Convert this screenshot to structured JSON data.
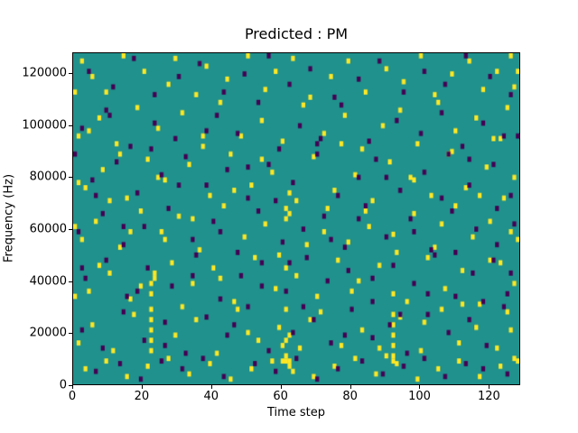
{
  "chart_data": {
    "type": "heatmap",
    "title": "Predicted : PM",
    "xlabel": "Time step",
    "ylabel": "Frequency (Hz)",
    "xlim": [
      0,
      129
    ],
    "ylim": [
      0,
      128000
    ],
    "x_ticks": [
      0,
      20,
      40,
      60,
      80,
      100,
      120
    ],
    "y_ticks": [
      0,
      20000,
      40000,
      60000,
      80000,
      100000,
      120000
    ],
    "grid": false,
    "legend": "none",
    "colors": {
      "background": "#20918c",
      "high": "#fde725",
      "low": "#440154",
      "axis": "#000000",
      "figure_bg": "#ffffff"
    },
    "y_unit": 1000,
    "cell": {
      "w": 1,
      "h": 2
    },
    "points_high": [
      [
        2,
        124
      ],
      [
        5,
        118
      ],
      [
        9,
        112
      ],
      [
        14,
        126
      ],
      [
        20,
        120
      ],
      [
        27,
        115
      ],
      [
        29,
        125
      ],
      [
        35,
        111
      ],
      [
        38,
        122
      ],
      [
        44,
        117
      ],
      [
        50,
        126
      ],
      [
        55,
        113
      ],
      [
        58,
        120
      ],
      [
        63,
        125
      ],
      [
        68,
        110
      ],
      [
        74,
        118
      ],
      [
        79,
        124
      ],
      [
        84,
        112
      ],
      [
        90,
        121
      ],
      [
        95,
        116
      ],
      [
        100,
        126
      ],
      [
        104,
        111
      ],
      [
        109,
        119
      ],
      [
        114,
        124
      ],
      [
        118,
        113
      ],
      [
        122,
        120
      ],
      [
        126,
        126
      ],
      [
        127,
        114
      ],
      [
        1,
        95
      ],
      [
        7,
        102
      ],
      [
        12,
        92
      ],
      [
        18,
        106
      ],
      [
        24,
        98
      ],
      [
        31,
        104
      ],
      [
        37,
        91
      ],
      [
        42,
        108
      ],
      [
        48,
        95
      ],
      [
        54,
        101
      ],
      [
        60,
        93
      ],
      [
        66,
        107
      ],
      [
        72,
        96
      ],
      [
        78,
        103
      ],
      [
        83,
        90
      ],
      [
        89,
        99
      ],
      [
        94,
        105
      ],
      [
        99,
        92
      ],
      [
        105,
        108
      ],
      [
        110,
        97
      ],
      [
        116,
        102
      ],
      [
        121,
        94
      ],
      [
        125,
        106
      ],
      [
        3,
        75
      ],
      [
        8,
        82
      ],
      [
        15,
        71
      ],
      [
        21,
        86
      ],
      [
        26,
        78
      ],
      [
        33,
        84
      ],
      [
        39,
        72
      ],
      [
        45,
        88
      ],
      [
        51,
        76
      ],
      [
        57,
        81
      ],
      [
        62,
        73
      ],
      [
        69,
        87
      ],
      [
        75,
        74
      ],
      [
        81,
        80
      ],
      [
        86,
        70
      ],
      [
        91,
        85
      ],
      [
        97,
        79
      ],
      [
        103,
        72
      ],
      [
        108,
        88
      ],
      [
        113,
        75
      ],
      [
        119,
        83
      ],
      [
        124,
        71
      ],
      [
        127,
        79
      ],
      [
        2,
        55
      ],
      [
        6,
        62
      ],
      [
        13,
        52
      ],
      [
        19,
        66
      ],
      [
        25,
        58
      ],
      [
        30,
        64
      ],
      [
        36,
        51
      ],
      [
        43,
        68
      ],
      [
        49,
        56
      ],
      [
        55,
        61
      ],
      [
        61,
        63
      ],
      [
        62,
        65
      ],
      [
        61,
        67
      ],
      [
        67,
        53
      ],
      [
        73,
        67
      ],
      [
        79,
        54
      ],
      [
        85,
        60
      ],
      [
        92,
        57
      ],
      [
        98,
        65
      ],
      [
        104,
        52
      ],
      [
        110,
        68
      ],
      [
        115,
        56
      ],
      [
        120,
        62
      ],
      [
        126,
        58
      ],
      [
        4,
        35
      ],
      [
        10,
        42
      ],
      [
        16,
        32
      ],
      [
        22,
        34
      ],
      [
        22,
        38
      ],
      [
        23,
        40
      ],
      [
        23,
        42
      ],
      [
        28,
        46
      ],
      [
        34,
        38
      ],
      [
        40,
        44
      ],
      [
        46,
        31
      ],
      [
        52,
        48
      ],
      [
        58,
        36
      ],
      [
        61,
        44
      ],
      [
        64,
        41
      ],
      [
        70,
        33
      ],
      [
        76,
        47
      ],
      [
        82,
        39
      ],
      [
        88,
        45
      ],
      [
        92,
        34
      ],
      [
        96,
        31
      ],
      [
        102,
        48
      ],
      [
        107,
        36
      ],
      [
        112,
        43
      ],
      [
        117,
        30
      ],
      [
        123,
        46
      ],
      [
        127,
        38
      ],
      [
        1,
        15
      ],
      [
        5,
        22
      ],
      [
        11,
        12
      ],
      [
        17,
        26
      ],
      [
        22,
        12
      ],
      [
        22,
        16
      ],
      [
        22,
        20
      ],
      [
        22,
        24
      ],
      [
        22,
        28
      ],
      [
        29,
        18
      ],
      [
        35,
        24
      ],
      [
        41,
        11
      ],
      [
        47,
        28
      ],
      [
        53,
        16
      ],
      [
        59,
        21
      ],
      [
        60,
        14
      ],
      [
        61,
        16
      ],
      [
        62,
        18
      ],
      [
        61,
        28
      ],
      [
        65,
        13
      ],
      [
        71,
        27
      ],
      [
        77,
        14
      ],
      [
        83,
        20
      ],
      [
        90,
        10
      ],
      [
        92,
        14
      ],
      [
        92,
        18
      ],
      [
        92,
        22
      ],
      [
        92,
        26
      ],
      [
        94,
        25
      ],
      [
        100,
        12
      ],
      [
        106,
        28
      ],
      [
        111,
        15
      ],
      [
        116,
        21
      ],
      [
        122,
        13
      ],
      [
        125,
        27
      ],
      [
        3,
        5
      ],
      [
        9,
        8
      ],
      [
        15,
        2
      ],
      [
        21,
        6
      ],
      [
        27,
        9
      ],
      [
        33,
        3
      ],
      [
        39,
        7
      ],
      [
        45,
        1
      ],
      [
        51,
        5
      ],
      [
        57,
        8
      ],
      [
        60,
        8
      ],
      [
        61,
        8
      ],
      [
        62,
        8
      ],
      [
        61,
        10
      ],
      [
        62,
        6
      ],
      [
        63,
        4
      ],
      [
        69,
        2
      ],
      [
        75,
        6
      ],
      [
        81,
        9
      ],
      [
        87,
        3
      ],
      [
        92,
        8
      ],
      [
        92,
        10
      ],
      [
        93,
        7
      ],
      [
        99,
        1
      ],
      [
        105,
        5
      ],
      [
        111,
        8
      ],
      [
        117,
        2
      ],
      [
        123,
        6
      ],
      [
        127,
        9
      ],
      [
        0,
        60
      ],
      [
        0,
        33
      ],
      [
        1,
        77
      ],
      [
        4,
        97
      ],
      [
        7,
        45
      ],
      [
        10,
        70
      ],
      [
        13,
        88
      ],
      [
        16,
        58
      ],
      [
        19,
        37
      ],
      [
        24,
        79
      ],
      [
        26,
        55
      ],
      [
        31,
        29
      ],
      [
        34,
        63
      ],
      [
        37,
        95
      ],
      [
        42,
        40
      ],
      [
        46,
        74
      ],
      [
        50,
        19
      ],
      [
        54,
        86
      ],
      [
        59,
        49
      ],
      [
        64,
        70
      ],
      [
        68,
        24
      ],
      [
        72,
        58
      ],
      [
        77,
        92
      ],
      [
        80,
        35
      ],
      [
        84,
        66
      ],
      [
        88,
        13
      ],
      [
        93,
        50
      ],
      [
        98,
        78
      ],
      [
        101,
        23
      ],
      [
        106,
        61
      ],
      [
        109,
        89
      ],
      [
        112,
        30
      ],
      [
        117,
        72
      ],
      [
        120,
        47
      ],
      [
        123,
        94
      ],
      [
        126,
        20
      ],
      [
        128,
        55
      ],
      [
        128,
        8
      ],
      [
        0,
        112
      ],
      [
        128,
        120
      ]
    ],
    "points_low": [
      [
        4,
        120
      ],
      [
        11,
        114
      ],
      [
        17,
        125
      ],
      [
        23,
        111
      ],
      [
        30,
        118
      ],
      [
        36,
        123
      ],
      [
        43,
        112
      ],
      [
        49,
        119
      ],
      [
        56,
        126
      ],
      [
        62,
        115
      ],
      [
        68,
        121
      ],
      [
        75,
        110
      ],
      [
        82,
        117
      ],
      [
        88,
        124
      ],
      [
        95,
        112
      ],
      [
        101,
        120
      ],
      [
        107,
        115
      ],
      [
        113,
        126
      ],
      [
        120,
        118
      ],
      [
        126,
        111
      ],
      [
        2,
        98
      ],
      [
        9,
        105
      ],
      [
        16,
        91
      ],
      [
        23,
        100
      ],
      [
        29,
        94
      ],
      [
        41,
        103
      ],
      [
        47,
        96
      ],
      [
        53,
        108
      ],
      [
        59,
        90
      ],
      [
        65,
        99
      ],
      [
        71,
        94
      ],
      [
        77,
        107
      ],
      [
        85,
        93
      ],
      [
        93,
        101
      ],
      [
        100,
        96
      ],
      [
        106,
        104
      ],
      [
        112,
        91
      ],
      [
        118,
        100
      ],
      [
        124,
        95
      ],
      [
        5,
        78
      ],
      [
        12,
        85
      ],
      [
        18,
        73
      ],
      [
        25,
        80
      ],
      [
        32,
        87
      ],
      [
        38,
        76
      ],
      [
        44,
        82
      ],
      [
        50,
        71
      ],
      [
        56,
        84
      ],
      [
        63,
        77
      ],
      [
        70,
        88
      ],
      [
        76,
        72
      ],
      [
        82,
        79
      ],
      [
        87,
        86
      ],
      [
        94,
        74
      ],
      [
        101,
        81
      ],
      [
        108,
        88
      ],
      [
        114,
        76
      ],
      [
        121,
        84
      ],
      [
        126,
        72
      ],
      [
        1,
        58
      ],
      [
        8,
        65
      ],
      [
        14,
        53
      ],
      [
        20,
        60
      ],
      [
        27,
        67
      ],
      [
        34,
        55
      ],
      [
        40,
        62
      ],
      [
        47,
        50
      ],
      [
        53,
        66
      ],
      [
        60,
        54
      ],
      [
        66,
        59
      ],
      [
        72,
        64
      ],
      [
        78,
        52
      ],
      [
        84,
        68
      ],
      [
        90,
        56
      ],
      [
        97,
        63
      ],
      [
        103,
        51
      ],
      [
        109,
        66
      ],
      [
        116,
        59
      ],
      [
        122,
        53
      ],
      [
        127,
        61
      ],
      [
        3,
        40
      ],
      [
        9,
        47
      ],
      [
        15,
        33
      ],
      [
        21,
        44
      ],
      [
        28,
        37
      ],
      [
        35,
        49
      ],
      [
        42,
        32
      ],
      [
        48,
        41
      ],
      [
        54,
        46
      ],
      [
        61,
        35
      ],
      [
        67,
        48
      ],
      [
        73,
        39
      ],
      [
        79,
        43
      ],
      [
        86,
        31
      ],
      [
        92,
        45
      ],
      [
        98,
        38
      ],
      [
        104,
        49
      ],
      [
        110,
        33
      ],
      [
        115,
        42
      ],
      [
        121,
        47
      ],
      [
        125,
        34
      ],
      [
        2,
        20
      ],
      [
        8,
        13
      ],
      [
        14,
        27
      ],
      [
        20,
        16
      ],
      [
        26,
        23
      ],
      [
        32,
        11
      ],
      [
        38,
        25
      ],
      [
        44,
        18
      ],
      [
        50,
        29
      ],
      [
        56,
        12
      ],
      [
        63,
        19
      ],
      [
        69,
        24
      ],
      [
        74,
        15
      ],
      [
        80,
        28
      ],
      [
        86,
        17
      ],
      [
        91,
        22
      ],
      [
        96,
        11
      ],
      [
        102,
        26
      ],
      [
        108,
        19
      ],
      [
        114,
        24
      ],
      [
        119,
        14
      ],
      [
        124,
        29
      ],
      [
        6,
        4
      ],
      [
        13,
        7
      ],
      [
        19,
        1
      ],
      [
        25,
        8
      ],
      [
        31,
        5
      ],
      [
        37,
        9
      ],
      [
        43,
        2
      ],
      [
        52,
        7
      ],
      [
        58,
        4
      ],
      [
        64,
        9
      ],
      [
        70,
        1
      ],
      [
        76,
        5
      ],
      [
        83,
        8
      ],
      [
        89,
        3
      ],
      [
        95,
        6
      ],
      [
        101,
        9
      ],
      [
        107,
        2
      ],
      [
        113,
        7
      ],
      [
        118,
        5
      ],
      [
        125,
        3
      ],
      [
        0,
        88
      ],
      [
        2,
        44
      ],
      [
        6,
        72
      ],
      [
        10,
        103
      ],
      [
        14,
        60
      ],
      [
        18,
        35
      ],
      [
        22,
        90
      ],
      [
        26,
        14
      ],
      [
        30,
        76
      ],
      [
        34,
        41
      ],
      [
        38,
        97
      ],
      [
        42,
        58
      ],
      [
        46,
        22
      ],
      [
        50,
        83
      ],
      [
        54,
        37
      ],
      [
        58,
        70
      ],
      [
        62,
        46
      ],
      [
        66,
        29
      ],
      [
        70,
        92
      ],
      [
        74,
        55
      ],
      [
        78,
        18
      ],
      [
        82,
        63
      ],
      [
        86,
        40
      ],
      [
        90,
        79
      ],
      [
        94,
        26
      ],
      [
        98,
        58
      ],
      [
        102,
        34
      ],
      [
        106,
        71
      ],
      [
        110,
        50
      ],
      [
        114,
        86
      ],
      [
        118,
        31
      ],
      [
        122,
        67
      ],
      [
        126,
        42
      ],
      [
        128,
        95
      ]
    ]
  }
}
